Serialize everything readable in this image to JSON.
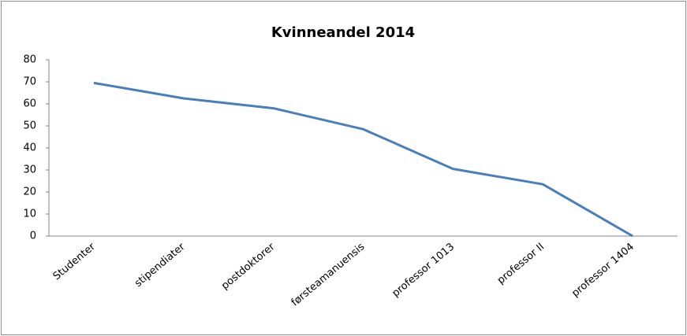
{
  "chart_data": {
    "type": "line",
    "title": "Kvinneandel 2014",
    "categories": [
      "Studenter",
      "stipendiater",
      "postdoktorer",
      "førsteamanuensis",
      "professor 1013",
      "professor II",
      "professor 1404"
    ],
    "series": [
      {
        "name": "Kvinneandel",
        "color": "#4a7ebb",
        "values": [
          69.5,
          62.5,
          58,
          48.5,
          30.5,
          23.5,
          0
        ]
      }
    ],
    "ylim": [
      0,
      80
    ],
    "yticks": [
      0,
      10,
      20,
      30,
      40,
      50,
      60,
      70,
      80
    ],
    "grid": false
  }
}
